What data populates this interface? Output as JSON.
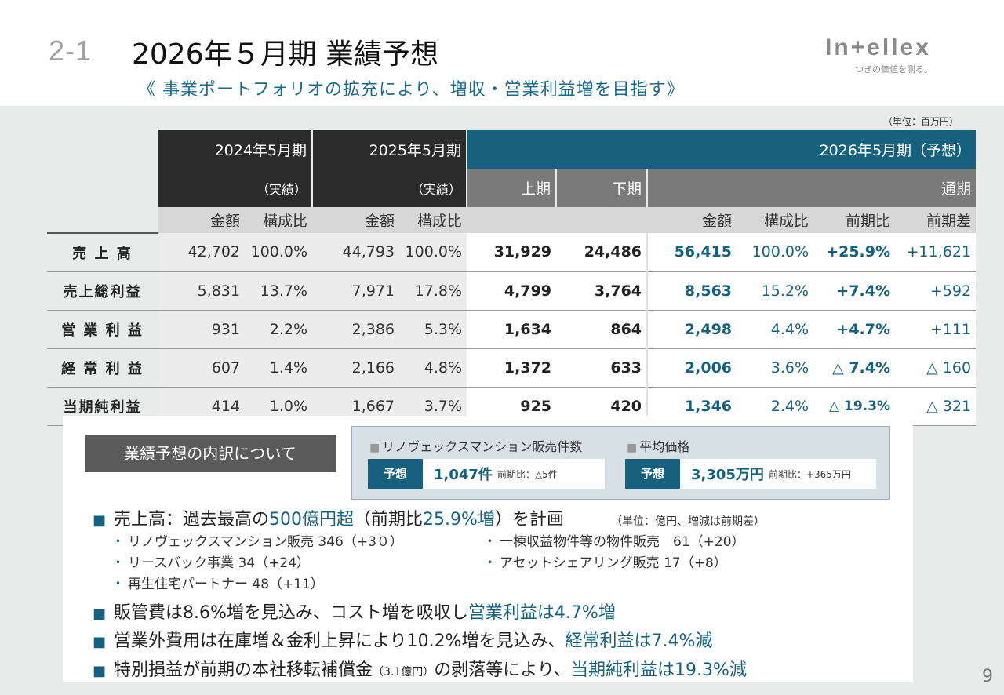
{
  "header": {
    "section_number": "2-1",
    "title": "2026年５月期 業績予想",
    "subtitle": "《 事業ポートフォリオの拡充により、増収・営業利益増を目指す》",
    "logo_word": "In+ellex",
    "logo_tagline": "つぎの価値を測る。"
  },
  "table": {
    "unit_note": "（単位：百万円）",
    "period_2024": "2024年5月期",
    "period_2025": "2025年5月期",
    "actual_label": "（実績）",
    "period_2026": "2026年5月期（予想）",
    "h1": "上期",
    "h2": "下期",
    "full_year": "通期",
    "col_amount": "金額",
    "col_ratio": "構成比",
    "col_yoy": "前期比",
    "col_diff": "前期差",
    "rows": [
      {
        "label": "売 上 高",
        "a24": "42,702",
        "r24": "100.0%",
        "a25": "44,793",
        "r25": "100.0%",
        "h1": "31,929",
        "h2": "24,486",
        "fy": "56,415",
        "ratio": "100.0%",
        "yoy": "+25.9%",
        "diff": "+11,621"
      },
      {
        "label": "売上総利益",
        "a24": "5,831",
        "r24": "13.7%",
        "a25": "7,971",
        "r25": "17.8%",
        "h1": "4,799",
        "h2": "3,764",
        "fy": "8,563",
        "ratio": "15.2%",
        "yoy": "+7.4%",
        "diff": "+592"
      },
      {
        "label": "営 業 利 益",
        "a24": "931",
        "r24": "2.2%",
        "a25": "2,386",
        "r25": "5.3%",
        "h1": "1,634",
        "h2": "864",
        "fy": "2,498",
        "ratio": "4.4%",
        "yoy": "+4.7%",
        "diff": "+111"
      },
      {
        "label": "経 常 利 益",
        "a24": "607",
        "r24": "1.4%",
        "a25": "2,166",
        "r25": "4.8%",
        "h1": "1,372",
        "h2": "633",
        "fy": "2,006",
        "ratio": "3.6%",
        "yoy": "△ 7.4%",
        "diff": "△ 160"
      },
      {
        "label": "当期純利益",
        "a24": "414",
        "r24": "1.0%",
        "a25": "1,667",
        "r25": "3.7%",
        "h1": "925",
        "h2": "420",
        "fy": "1,346",
        "ratio": "2.4%",
        "yoy": "△ 19.3%",
        "diff": "△ 321"
      }
    ]
  },
  "breakdown": {
    "label": "業績予想の内訳について",
    "kpi1_head": "リノヴェックスマンション販売件数",
    "kpi2_head": "平均価格",
    "tag": "予想",
    "kpi1_value": "1,047件",
    "kpi1_sub": "前期比：△5件",
    "kpi2_value": "3,305万円",
    "kpi2_sub": "前期比：+365万円"
  },
  "bullets": {
    "b1_a": "売上高：過去最高の",
    "b1_hl1": "500億円超",
    "b1_b": "（前期比",
    "b1_hl2": "25.9%増",
    "b1_c": "）を計画",
    "b1_unit": "（単位：億円、増減は前期差）",
    "s1": "リノヴェックスマンション販売 346（+3０）",
    "s2": "一棟収益物件等の物件販売　61（+20）",
    "s3": "リースバック事業 34（+24）",
    "s4": "アセットシェアリング販売 17（+8）",
    "s5": "再生住宅パートナー 48（+11）",
    "b2_a": "販管費は8.6%増を見込み、コスト増を吸収し",
    "b2_hl": "営業利益は4.7%増",
    "b3_a": "営業外費用は在庫増＆金利上昇により10.2%増を見込み、",
    "b3_hl": "経常利益は7.4%減",
    "b4_a": "特別損益が前期の本社移転補償金",
    "b4_small": "（3.1億円）",
    "b4_b": "の剥落等により、",
    "b4_hl": "当期純利益は19.3%減"
  },
  "page_number": "9",
  "colors": {
    "accent": "#17617f",
    "dark_header": "#2b2b2b",
    "grey_bg": "#e9eaea"
  }
}
